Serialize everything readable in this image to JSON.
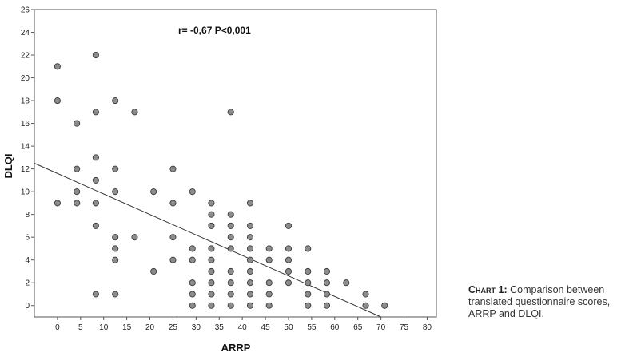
{
  "chart_data": {
    "type": "scatter",
    "xlabel": "ARRP",
    "ylabel": "DLQI",
    "xlim": [
      -5,
      82
    ],
    "ylim": [
      -1,
      26
    ],
    "x_ticks": [
      0,
      5,
      10,
      15,
      20,
      25,
      30,
      35,
      40,
      45,
      50,
      55,
      60,
      65,
      70,
      75,
      80
    ],
    "y_ticks": [
      0,
      2,
      4,
      6,
      8,
      10,
      12,
      14,
      16,
      18,
      20,
      22,
      24,
      26
    ],
    "annotation": "r= -0,67 P<0,001",
    "fit_line": {
      "x": [
        -5,
        70
      ],
      "y": [
        12.5,
        -1
      ]
    },
    "points": [
      [
        0,
        21
      ],
      [
        0,
        18
      ],
      [
        0,
        9
      ],
      [
        4.2,
        16
      ],
      [
        4.2,
        12
      ],
      [
        4.2,
        10
      ],
      [
        4.2,
        9
      ],
      [
        8.3,
        22
      ],
      [
        8.3,
        17
      ],
      [
        8.3,
        13
      ],
      [
        8.3,
        11
      ],
      [
        8.3,
        9
      ],
      [
        8.3,
        7
      ],
      [
        8.3,
        1
      ],
      [
        12.5,
        18
      ],
      [
        12.5,
        12
      ],
      [
        12.5,
        10
      ],
      [
        12.5,
        6
      ],
      [
        12.5,
        5
      ],
      [
        12.5,
        4
      ],
      [
        12.5,
        1
      ],
      [
        16.7,
        17
      ],
      [
        16.7,
        6
      ],
      [
        20.8,
        10
      ],
      [
        20.8,
        3
      ],
      [
        25,
        12
      ],
      [
        25,
        9
      ],
      [
        25,
        6
      ],
      [
        25,
        4
      ],
      [
        29.2,
        10
      ],
      [
        29.2,
        5
      ],
      [
        29.2,
        4
      ],
      [
        29.2,
        2
      ],
      [
        29.2,
        1
      ],
      [
        29.2,
        0
      ],
      [
        33.3,
        9
      ],
      [
        33.3,
        8
      ],
      [
        33.3,
        7
      ],
      [
        33.3,
        5
      ],
      [
        33.3,
        4
      ],
      [
        33.3,
        3
      ],
      [
        33.3,
        2
      ],
      [
        33.3,
        1
      ],
      [
        33.3,
        0
      ],
      [
        37.5,
        17
      ],
      [
        37.5,
        8
      ],
      [
        37.5,
        7
      ],
      [
        37.5,
        6
      ],
      [
        37.5,
        5
      ],
      [
        37.5,
        3
      ],
      [
        37.5,
        2
      ],
      [
        37.5,
        1
      ],
      [
        37.5,
        0
      ],
      [
        41.7,
        9
      ],
      [
        41.7,
        7
      ],
      [
        41.7,
        6
      ],
      [
        41.7,
        5
      ],
      [
        41.7,
        4
      ],
      [
        41.7,
        3
      ],
      [
        41.7,
        2
      ],
      [
        41.7,
        1
      ],
      [
        41.7,
        0
      ],
      [
        45.8,
        5
      ],
      [
        45.8,
        4
      ],
      [
        45.8,
        2
      ],
      [
        45.8,
        1
      ],
      [
        45.8,
        0
      ],
      [
        50,
        7
      ],
      [
        50,
        5
      ],
      [
        50,
        4
      ],
      [
        50,
        3
      ],
      [
        50,
        2
      ],
      [
        54.2,
        5
      ],
      [
        54.2,
        3
      ],
      [
        54.2,
        2
      ],
      [
        54.2,
        1
      ],
      [
        54.2,
        0
      ],
      [
        58.3,
        3
      ],
      [
        58.3,
        2
      ],
      [
        58.3,
        1
      ],
      [
        58.3,
        0
      ],
      [
        62.5,
        2
      ],
      [
        66.7,
        1
      ],
      [
        66.7,
        0
      ],
      [
        70.8,
        0
      ]
    ]
  },
  "caption": {
    "label": "Chart 1:",
    "text": " Comparison between translated questionnaire scores, ARRP and DLQI."
  },
  "colors": {
    "point_fill": "#8c8c8c",
    "point_stroke": "#3a3a3a",
    "line": "#333333",
    "axis": "#555555"
  }
}
